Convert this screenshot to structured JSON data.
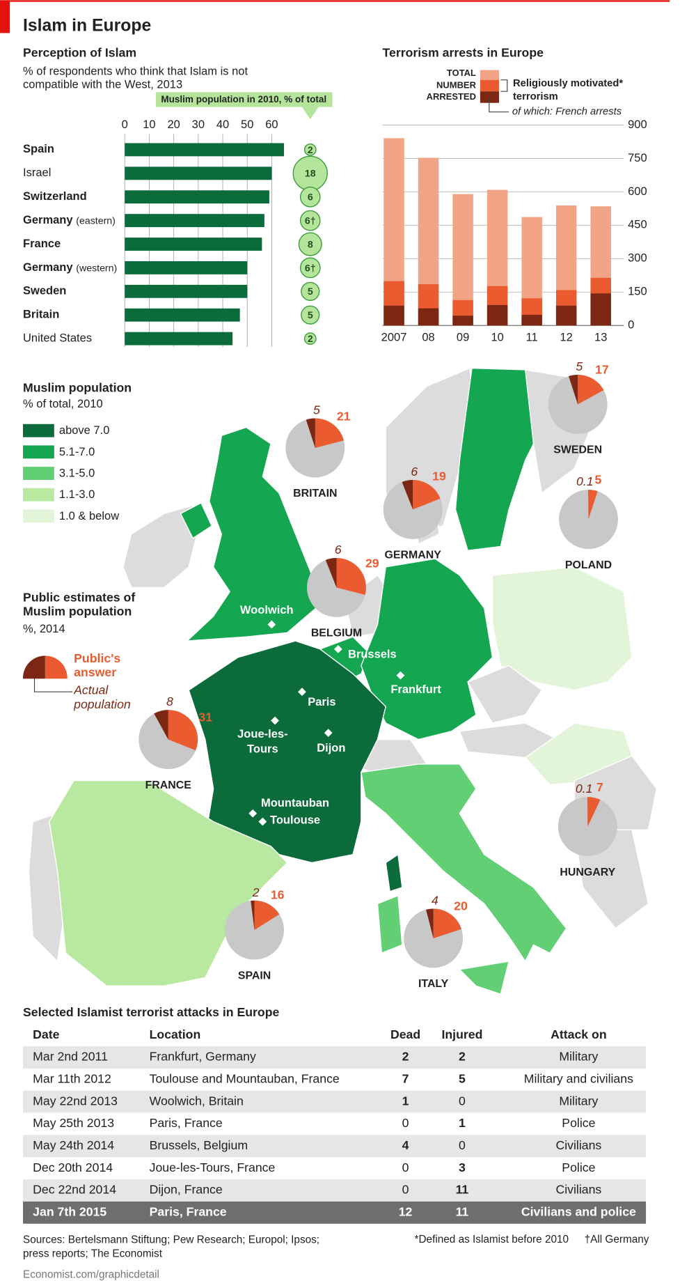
{
  "title": "Islam in Europe",
  "chart_data": [
    {
      "type": "hbar",
      "title": "Perception of Islam",
      "subtitle": "% of respondents who think that Islam is not compatible with the West, 2013",
      "categories": [
        "Spain",
        "Israel",
        "Switzerland",
        "Germany",
        "France",
        "Germany",
        "Sweden",
        "Britain",
        "United States"
      ],
      "category_notes": [
        null,
        null,
        null,
        "(eastern)",
        null,
        "(western)",
        null,
        null,
        null
      ],
      "bold": [
        true,
        false,
        true,
        true,
        true,
        true,
        true,
        true,
        false
      ],
      "values": [
        65,
        60,
        59,
        57,
        56,
        50,
        50,
        47,
        44
      ],
      "color": "#0b6b3b",
      "xlim": [
        0,
        66
      ],
      "xticks": [
        0,
        10,
        20,
        30,
        40,
        50,
        60
      ],
      "grid": true,
      "bubbles": {
        "label": "Muslim population in 2010, % of total",
        "values": [
          2,
          18,
          6,
          6,
          8,
          6,
          5,
          5,
          2
        ],
        "value_labels": [
          "2",
          "18",
          "6",
          "6†",
          "8",
          "6†",
          "5",
          "5",
          "2"
        ],
        "color": "#b5e59b"
      }
    },
    {
      "type": "bar",
      "title": "Terrorism arrests in Europe",
      "categories": [
        "2007",
        "08",
        "09",
        "10",
        "11",
        "12",
        "13"
      ],
      "series": [
        {
          "name": "TOTAL NUMBER ARRESTED",
          "color": "#f2a486",
          "values": [
            841,
            753,
            590,
            609,
            487,
            539,
            535
          ]
        },
        {
          "name": "Religiously motivated* terrorism",
          "color": "#ea5b2f",
          "values": [
            199,
            185,
            114,
            177,
            122,
            159,
            214
          ]
        },
        {
          "name": "of which: French arrests",
          "color": "#7b2714",
          "values": [
            89,
            77,
            44,
            92,
            48,
            89,
            144
          ]
        }
      ],
      "ylim": [
        0,
        900
      ],
      "yticks": [
        0,
        150,
        300,
        450,
        600,
        750,
        900
      ],
      "grid": true
    },
    {
      "type": "map",
      "title": "Muslim population",
      "subtitle": "% of total, 2010",
      "legend": {
        "categories": [
          "above 7.0",
          "5.1-7.0",
          "3.1-5.0",
          "1.1-3.0",
          "1.0 & below"
        ],
        "colors": [
          "#0b6b3b",
          "#15a651",
          "#62cf75",
          "#b9e9a1",
          "#e3f5d8"
        ]
      },
      "cities": [
        "Woolwich",
        "Brussels",
        "Frankfurt",
        "Paris",
        "Joue-les-Tours",
        "Dijon",
        "Mountauban",
        "Toulouse"
      ]
    },
    {
      "type": "pie",
      "title": "Public estimates of Muslim population",
      "subtitle": "%, 2014",
      "categories": [
        "SWEDEN",
        "BRITAIN",
        "GERMANY",
        "POLAND",
        "BELGIUM",
        "FRANCE",
        "HUNGARY",
        "SPAIN",
        "ITALY"
      ],
      "series": [
        {
          "name": "Public's answer",
          "color": "#ea5b2f",
          "values": [
            17,
            21,
            19,
            5,
            29,
            31,
            7,
            16,
            20
          ]
        },
        {
          "name": "Actual population",
          "color": "#7b2714",
          "values": [
            5,
            5,
            6,
            0.1,
            6,
            8,
            0.1,
            2,
            4
          ]
        }
      ],
      "rest_color": "#c8c8c8"
    }
  ],
  "table": {
    "title": "Selected Islamist terrorist attacks in Europe",
    "columns": [
      "Date",
      "Location",
      "Dead",
      "Injured",
      "Attack on"
    ],
    "rows": [
      [
        "Mar 2nd 2011",
        "Frankfurt, Germany",
        2,
        2,
        "Military"
      ],
      [
        "Mar 11th 2012",
        "Toulouse and Mountauban, France",
        7,
        5,
        "Military and civilians"
      ],
      [
        "May 22nd 2013",
        "Woolwich, Britain",
        1,
        0,
        "Military"
      ],
      [
        "May 25th 2013",
        "Paris, France",
        0,
        1,
        "Police"
      ],
      [
        "May 24th 2014",
        "Brussels, Belgium",
        4,
        0,
        "Civilians"
      ],
      [
        "Dec 20th 2014",
        "Joue-les-Tours, France",
        0,
        3,
        "Police"
      ],
      [
        "Dec 22nd 2014",
        "Dijon, France",
        0,
        11,
        "Civilians"
      ],
      [
        "Jan 7th 2015",
        "Paris, France",
        12,
        11,
        "Civilians and police"
      ]
    ],
    "highlight_last_row": true
  },
  "footer": {
    "sources": "Sources: Bertelsmann Stiftung; Pew Research; Europol; Ipsos; press reports; The Economist",
    "notes": [
      "*Defined as Islamist before 2010",
      "†All Germany"
    ],
    "url": "Economist.com/graphicdetail"
  }
}
